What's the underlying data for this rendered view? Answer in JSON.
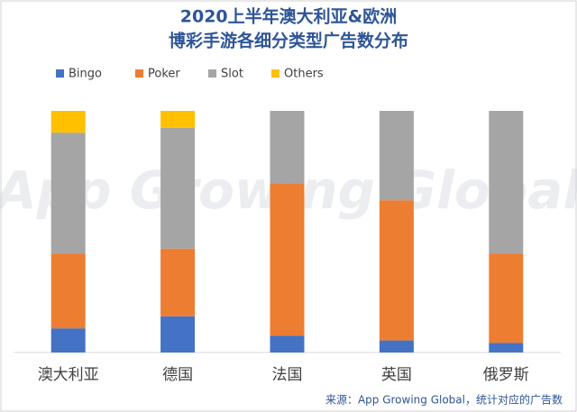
{
  "chart_data": {
    "type": "stacked_bar",
    "title": [
      "2020上半年澳大利亚&欧洲",
      "博彩手游各细分类型广告数分布"
    ],
    "categories": [
      "澳大利亚",
      "德国",
      "法国",
      "英国",
      "俄罗斯"
    ],
    "series": [
      {
        "name": "Bingo",
        "color": "#4472c4",
        "values": [
          10,
          15,
          7,
          5,
          4
        ]
      },
      {
        "name": "Poker",
        "color": "#ed7d31",
        "values": [
          31,
          28,
          63,
          58,
          37
        ]
      },
      {
        "name": "Slot",
        "color": "#a5a5a5",
        "values": [
          50,
          50,
          30,
          37,
          59
        ]
      },
      {
        "name": "Others",
        "color": "#ffc000",
        "values": [
          9,
          7,
          0,
          0,
          0
        ]
      }
    ],
    "ylim": [
      0,
      100
    ],
    "watermark": "App Growing Global",
    "source": "来源：App Growing Global，统计对应的广告数"
  }
}
